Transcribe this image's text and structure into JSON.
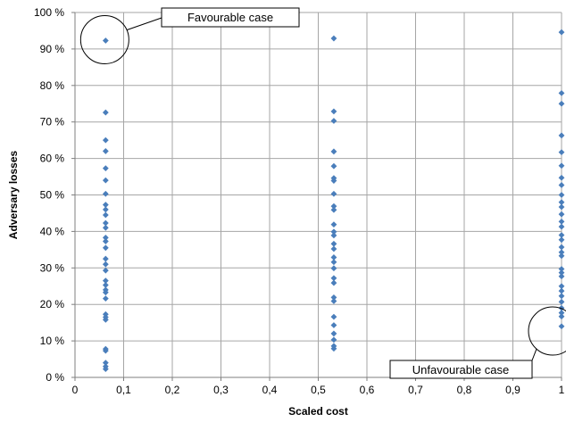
{
  "chart_data": {
    "type": "scatter",
    "title": "",
    "xlabel": "Scaled cost",
    "ylabel": "Adversary losses",
    "xlim": [
      0,
      1
    ],
    "ylim": [
      0,
      100
    ],
    "x_ticks": [
      "0",
      "0,1",
      "0,2",
      "0,3",
      "0,4",
      "0,5",
      "0,6",
      "0,7",
      "0,8",
      "0,9",
      "1"
    ],
    "y_ticks": [
      "0 %",
      "10 %",
      "20 %",
      "30 %",
      "40 %",
      "50 %",
      "60 %",
      "70 %",
      "80 %",
      "90 %",
      "100 %"
    ],
    "grid": true,
    "series": [
      {
        "points": [
          [
            0.063,
            92.3
          ],
          [
            0.063,
            72.6
          ],
          [
            0.063,
            65.0
          ],
          [
            0.063,
            62.0
          ],
          [
            0.063,
            57.3
          ],
          [
            0.063,
            54.0
          ],
          [
            0.063,
            50.3
          ],
          [
            0.063,
            47.3
          ],
          [
            0.063,
            46.0
          ],
          [
            0.063,
            44.5
          ],
          [
            0.063,
            42.3
          ],
          [
            0.063,
            41.0
          ],
          [
            0.063,
            38.3
          ],
          [
            0.063,
            37.3
          ],
          [
            0.063,
            35.5
          ],
          [
            0.063,
            32.5
          ],
          [
            0.063,
            31.0
          ],
          [
            0.063,
            29.3
          ],
          [
            0.063,
            26.5
          ],
          [
            0.063,
            25.3
          ],
          [
            0.063,
            24.0
          ],
          [
            0.063,
            23.3
          ],
          [
            0.063,
            21.6
          ],
          [
            0.063,
            17.3
          ],
          [
            0.063,
            16.5
          ],
          [
            0.063,
            15.8
          ],
          [
            0.063,
            7.8
          ],
          [
            0.063,
            7.3
          ],
          [
            0.063,
            4.0
          ],
          [
            0.063,
            3.0
          ],
          [
            0.063,
            2.3
          ],
          [
            0.532,
            92.9
          ],
          [
            0.532,
            72.9
          ],
          [
            0.532,
            70.3
          ],
          [
            0.532,
            61.9
          ],
          [
            0.532,
            57.9
          ],
          [
            0.532,
            54.6
          ],
          [
            0.532,
            53.9
          ],
          [
            0.532,
            50.3
          ],
          [
            0.532,
            46.9
          ],
          [
            0.532,
            45.9
          ],
          [
            0.532,
            41.9
          ],
          [
            0.532,
            39.9
          ],
          [
            0.532,
            38.9
          ],
          [
            0.532,
            36.6
          ],
          [
            0.532,
            35.2
          ],
          [
            0.532,
            32.9
          ],
          [
            0.532,
            31.6
          ],
          [
            0.532,
            29.9
          ],
          [
            0.532,
            27.2
          ],
          [
            0.532,
            25.9
          ],
          [
            0.532,
            21.9
          ],
          [
            0.532,
            20.9
          ],
          [
            0.532,
            16.6
          ],
          [
            0.532,
            14.3
          ],
          [
            0.532,
            12.0
          ],
          [
            0.532,
            10.3
          ],
          [
            0.532,
            8.6
          ],
          [
            0.532,
            7.9
          ],
          [
            1.0,
            94.6
          ],
          [
            1.0,
            77.9
          ],
          [
            1.0,
            75.0
          ],
          [
            1.0,
            66.3
          ],
          [
            1.0,
            61.7
          ],
          [
            1.0,
            58.0
          ],
          [
            1.0,
            54.7
          ],
          [
            1.0,
            52.7
          ],
          [
            1.0,
            50.0
          ],
          [
            1.0,
            48.0
          ],
          [
            1.0,
            46.7
          ],
          [
            1.0,
            44.7
          ],
          [
            1.0,
            42.7
          ],
          [
            1.0,
            41.3
          ],
          [
            1.0,
            39.0
          ],
          [
            1.0,
            37.7
          ],
          [
            1.0,
            35.7
          ],
          [
            1.0,
            34.3
          ],
          [
            1.0,
            33.3
          ],
          [
            1.0,
            29.7
          ],
          [
            1.0,
            28.7
          ],
          [
            1.0,
            27.7
          ],
          [
            1.0,
            25.0
          ],
          [
            1.0,
            23.7
          ],
          [
            1.0,
            22.3
          ],
          [
            1.0,
            20.7
          ],
          [
            1.0,
            19.0
          ],
          [
            1.0,
            17.7
          ],
          [
            1.0,
            16.7
          ],
          [
            1.0,
            14.0
          ]
        ]
      }
    ],
    "annotations": [
      {
        "text": "Favourable case",
        "x": 0.063,
        "y": 92.3
      },
      {
        "text": "Unfavourable case",
        "x": 1.0,
        "y": 12.7
      }
    ],
    "colors": {
      "marker": "#4a7ebb",
      "grid": "#a6a6a6",
      "axis": "#7f7f7f"
    }
  }
}
